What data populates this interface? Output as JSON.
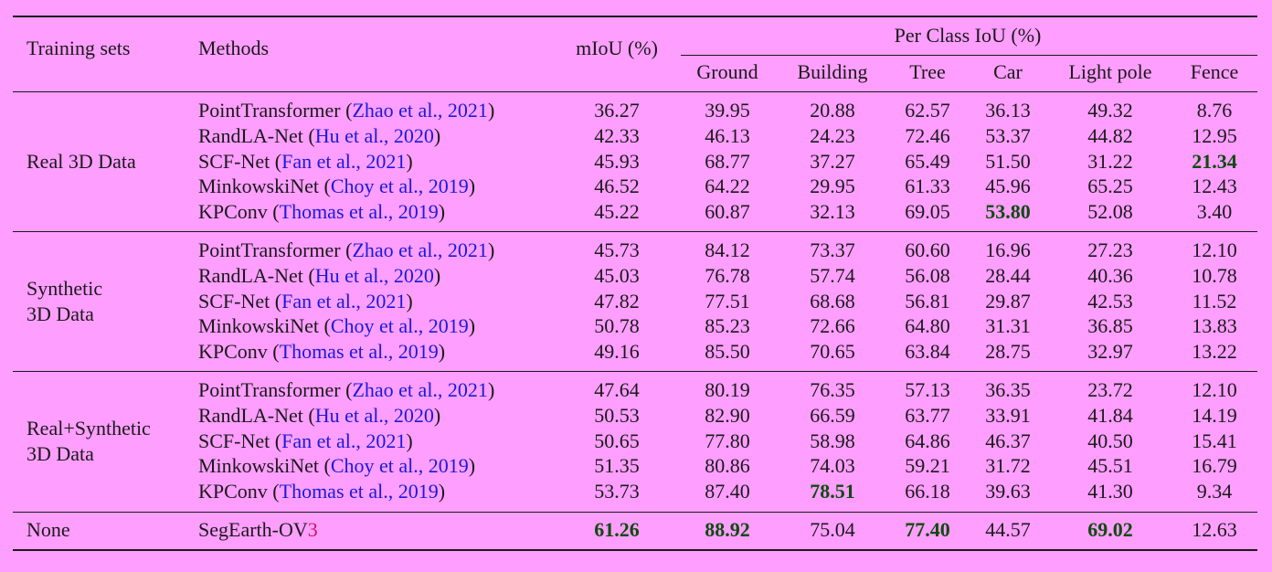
{
  "header": {
    "training_sets": "Training sets",
    "methods": "Methods",
    "miou": "mIoU (%)",
    "per_class": "Per Class IoU (%)",
    "classes": [
      "Ground",
      "Building",
      "Tree",
      "Car",
      "Light pole",
      "Fence"
    ]
  },
  "groups": [
    {
      "label_lines": [
        "Real 3D Data"
      ],
      "rows": [
        {
          "method": "PointTransformer",
          "cite_open": "(",
          "cite_text": "Zhao et al., 2021",
          "cite_close": ")",
          "values": [
            "36.27",
            "39.95",
            "20.88",
            "62.57",
            "36.13",
            "49.32",
            "8.76"
          ],
          "bold": []
        },
        {
          "method": "RandLA-Net",
          "cite_open": "(",
          "cite_text": "Hu et al., 2020",
          "cite_close": ")",
          "values": [
            "42.33",
            "46.13",
            "24.23",
            "72.46",
            "53.37",
            "44.82",
            "12.95"
          ],
          "bold": []
        },
        {
          "method": "SCF-Net",
          "cite_open": "(",
          "cite_text": "Fan et al., 2021",
          "cite_close": ")",
          "values": [
            "45.93",
            "68.77",
            "37.27",
            "65.49",
            "51.50",
            "31.22",
            "21.34"
          ],
          "bold": [
            6
          ]
        },
        {
          "method": "MinkowskiNet",
          "cite_open": "(",
          "cite_text": "Choy et al., 2019",
          "cite_close": ")",
          "values": [
            "46.52",
            "64.22",
            "29.95",
            "61.33",
            "45.96",
            "65.25",
            "12.43"
          ],
          "bold": []
        },
        {
          "method": "KPConv",
          "cite_open": "(",
          "cite_text": "Thomas et al., 2019",
          "cite_close": ")",
          "values": [
            "45.22",
            "60.87",
            "32.13",
            "69.05",
            "53.80",
            "52.08",
            "3.40"
          ],
          "bold": [
            4
          ]
        }
      ]
    },
    {
      "label_lines": [
        "Synthetic",
        "3D Data"
      ],
      "rows": [
        {
          "method": "PointTransformer",
          "cite_open": "(",
          "cite_text": "Zhao et al., 2021",
          "cite_close": ")",
          "values": [
            "45.73",
            "84.12",
            "73.37",
            "60.60",
            "16.96",
            "27.23",
            "12.10"
          ],
          "bold": []
        },
        {
          "method": "RandLA-Net",
          "cite_open": "(",
          "cite_text": "Hu et al., 2020",
          "cite_close": ")",
          "values": [
            "45.03",
            "76.78",
            "57.74",
            "56.08",
            "28.44",
            "40.36",
            "10.78"
          ],
          "bold": []
        },
        {
          "method": "SCF-Net",
          "cite_open": "(",
          "cite_text": "Fan et al., 2021",
          "cite_close": ")",
          "values": [
            "47.82",
            "77.51",
            "68.68",
            "56.81",
            "29.87",
            "42.53",
            "11.52"
          ],
          "bold": []
        },
        {
          "method": "MinkowskiNet",
          "cite_open": "(",
          "cite_text": "Choy et al., 2019",
          "cite_close": ")",
          "values": [
            "50.78",
            "85.23",
            "72.66",
            "64.80",
            "31.31",
            "36.85",
            "13.83"
          ],
          "bold": []
        },
        {
          "method": "KPConv",
          "cite_open": "(",
          "cite_text": "Thomas et al., 2019",
          "cite_close": ")",
          "values": [
            "49.16",
            "85.50",
            "70.65",
            "63.84",
            "28.75",
            "32.97",
            "13.22"
          ],
          "bold": []
        }
      ]
    },
    {
      "label_lines": [
        "Real+Synthetic",
        "3D Data"
      ],
      "rows": [
        {
          "method": "PointTransformer",
          "cite_open": "(",
          "cite_text": "Zhao et al., 2021",
          "cite_close": ")",
          "values": [
            "47.64",
            "80.19",
            "76.35",
            "57.13",
            "36.35",
            "23.72",
            "12.10"
          ],
          "bold": []
        },
        {
          "method": "RandLA-Net",
          "cite_open": "(",
          "cite_text": "Hu et al., 2020",
          "cite_close": ")",
          "values": [
            "50.53",
            "82.90",
            "66.59",
            "63.77",
            "33.91",
            "41.84",
            "14.19"
          ],
          "bold": []
        },
        {
          "method": "SCF-Net",
          "cite_open": "(",
          "cite_text": "Fan et al., 2021",
          "cite_close": ")",
          "values": [
            "50.65",
            "77.80",
            "58.98",
            "64.86",
            "46.37",
            "40.50",
            "15.41"
          ],
          "bold": []
        },
        {
          "method": "MinkowskiNet",
          "cite_open": "(",
          "cite_text": "Choy et al., 2019",
          "cite_close": ")",
          "values": [
            "51.35",
            "80.86",
            "74.03",
            "59.21",
            "31.72",
            "45.51",
            "16.79"
          ],
          "bold": []
        },
        {
          "method": "KPConv",
          "cite_open": "(",
          "cite_text": "Thomas et al., 2019",
          "cite_close": ")",
          "values": [
            "53.73",
            "87.40",
            "78.51",
            "66.18",
            "39.63",
            "41.30",
            "9.34"
          ],
          "bold": [
            2
          ]
        }
      ]
    },
    {
      "label_lines": [
        "None"
      ],
      "rows": [
        {
          "method": "SegEarth-OV",
          "method_suffix": "3",
          "values": [
            "61.26",
            "88.92",
            "75.04",
            "77.40",
            "44.57",
            "69.02",
            "12.63"
          ],
          "bold": [
            0,
            1,
            3,
            5
          ]
        }
      ]
    }
  ],
  "colors": {
    "background": "#fe9efe",
    "text": "#1a1a1a",
    "citation": "#1a1adc",
    "suffix_accent": "#d0145a",
    "best": "#0f4a0f"
  }
}
